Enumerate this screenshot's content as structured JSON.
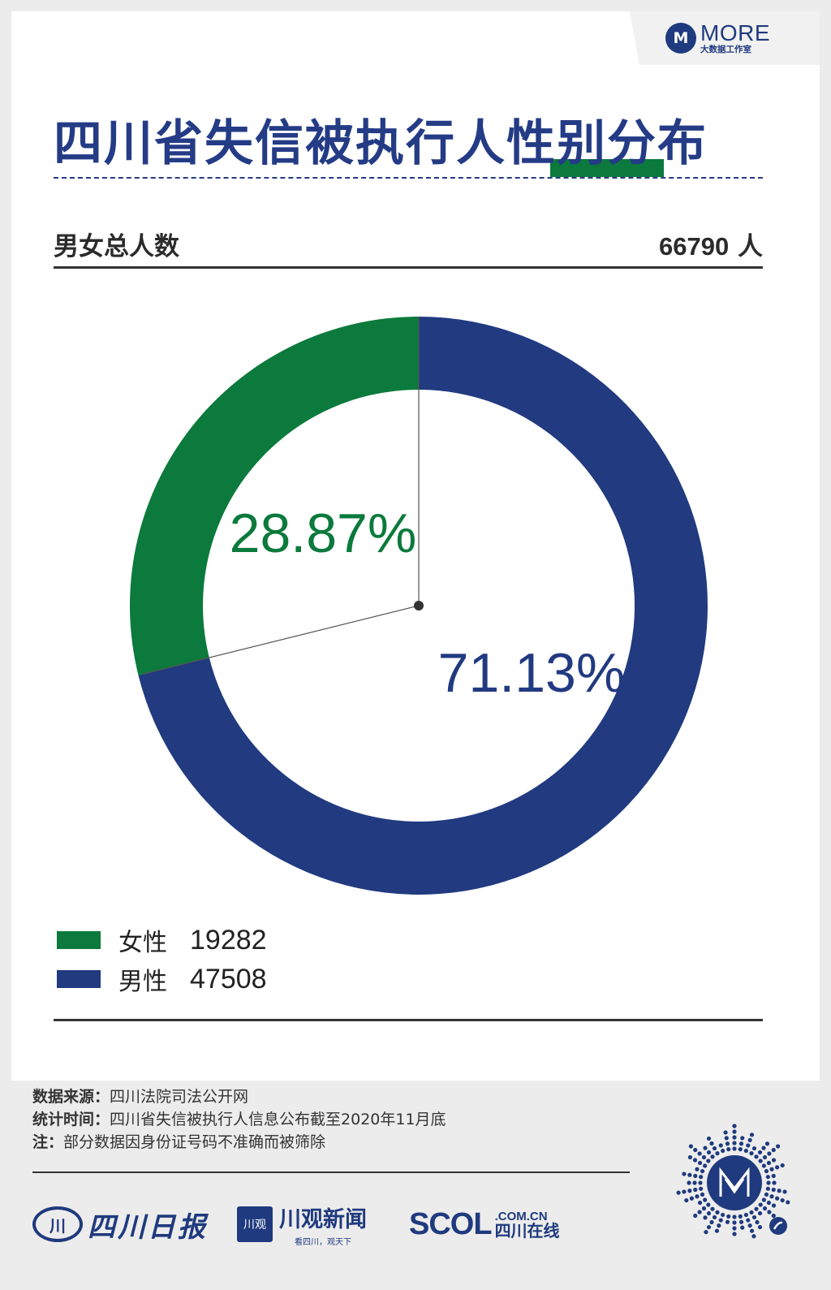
{
  "logo": {
    "badge": "M",
    "main": "MORE",
    "sub": "大数据工作室"
  },
  "title": "四川省失信被执行人性别分布",
  "total": {
    "label": "男女总人数",
    "value": "66790",
    "unit": "人"
  },
  "chart_data": {
    "type": "pie",
    "donut": true,
    "title": "四川省失信被执行人性别分布",
    "slices": [
      {
        "name": "男性",
        "value": 47508,
        "percent_label": "71.13%",
        "color": "#213a80"
      },
      {
        "name": "女性",
        "value": 19282,
        "percent_label": "28.87%",
        "color": "#0b7a3c"
      }
    ]
  },
  "legend": [
    {
      "name": "女性",
      "count": "19282",
      "color": "#0b7a3c"
    },
    {
      "name": "男性",
      "count": "47508",
      "color": "#213a80"
    }
  ],
  "notes": {
    "source_label": "数据来源：",
    "source_value": "四川法院司法公开网",
    "time_label": "统计时间：",
    "time_value": "四川省失信被执行人信息公布截至2020年11月底",
    "note_label": "注：",
    "note_value": "部分数据因身份证号码不准确而被筛除"
  },
  "brands": {
    "sichuan_daily_mark": "川",
    "sichuan_daily": "四川日报",
    "chuanguan_mark": "川观",
    "chuanguan": "川观新闻",
    "chuanguan_slogan": "看四川，观天下",
    "scol": "SCOL",
    "scol_domain": ".COM.CN",
    "scol_cn": "四川在线"
  }
}
